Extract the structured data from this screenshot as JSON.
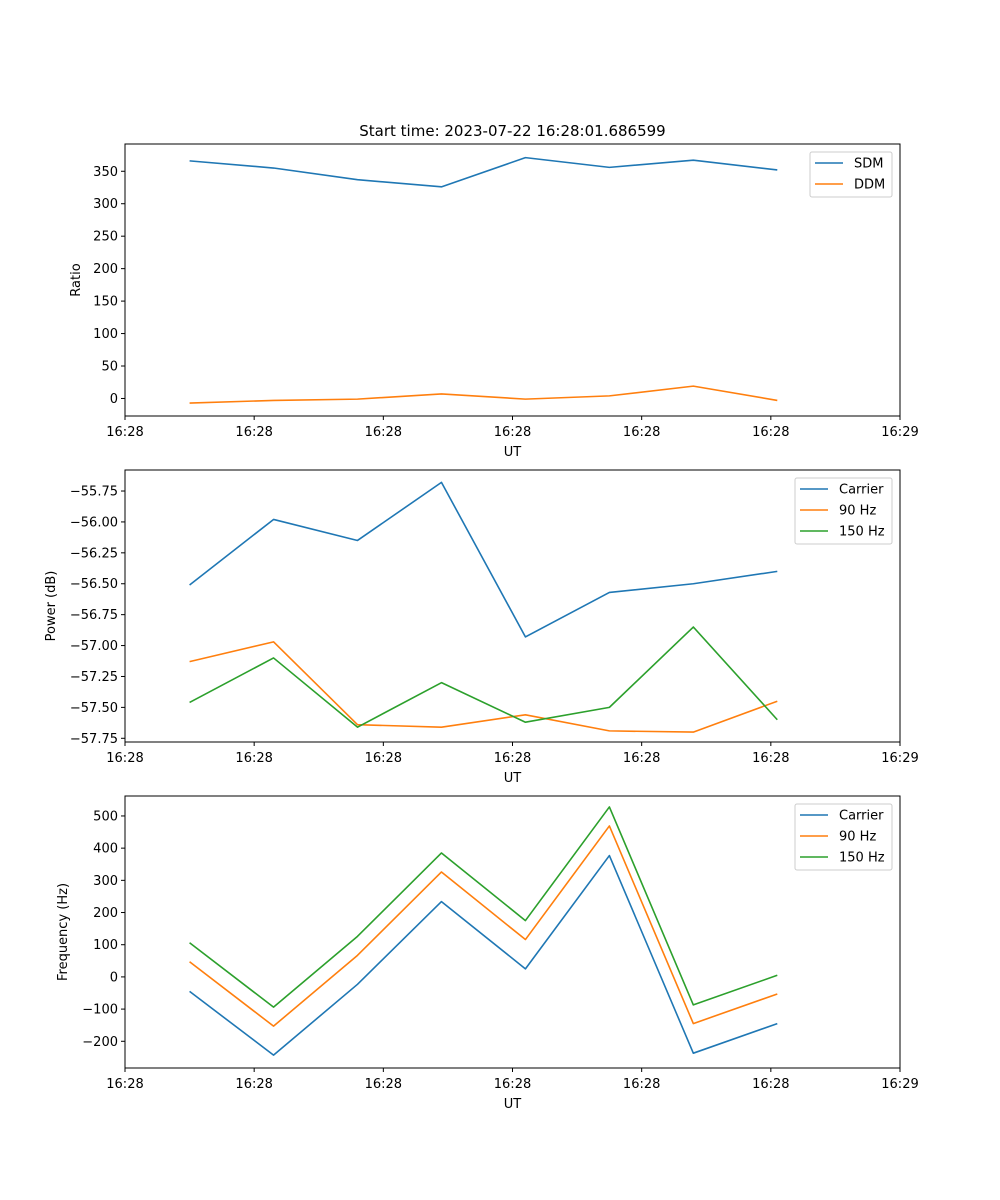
{
  "chart_data": [
    {
      "type": "line",
      "title": "Start time: 2023-07-22 16:28:01.686599",
      "xlabel": "UT",
      "ylabel": "Ratio",
      "xlim": [
        0,
        6
      ],
      "x": [
        0.5,
        1.15,
        1.8,
        2.45,
        3.1,
        3.75,
        4.4,
        5.05
      ],
      "x_ticks": [
        0,
        1,
        2,
        3,
        4,
        5,
        6
      ],
      "x_tick_labels": [
        "16:28",
        "16:28",
        "16:28",
        "16:28",
        "16:28",
        "16:28",
        "16:29"
      ],
      "ylim": [
        -27,
        392
      ],
      "y_ticks": [
        0,
        50,
        100,
        150,
        200,
        250,
        300,
        350
      ],
      "y_tick_labels": [
        "0",
        "50",
        "100",
        "150",
        "200",
        "250",
        "300",
        "350"
      ],
      "legend": "top-right",
      "series": [
        {
          "name": "SDM",
          "color": "#1f77b4",
          "values": [
            366,
            355,
            337,
            326,
            371,
            356,
            367,
            352
          ]
        },
        {
          "name": "DDM",
          "color": "#ff7f0e",
          "values": [
            -7,
            -3,
            -1,
            7,
            -1,
            4,
            19,
            -3
          ]
        }
      ]
    },
    {
      "type": "line",
      "title": "",
      "xlabel": "UT",
      "ylabel": "Power (dB)",
      "xlim": [
        0,
        6
      ],
      "x": [
        0.5,
        1.15,
        1.8,
        2.45,
        3.1,
        3.75,
        4.4,
        5.05
      ],
      "x_ticks": [
        0,
        1,
        2,
        3,
        4,
        5,
        6
      ],
      "x_tick_labels": [
        "16:28",
        "16:28",
        "16:28",
        "16:28",
        "16:28",
        "16:28",
        "16:29"
      ],
      "ylim": [
        -57.78,
        -55.58
      ],
      "y_ticks": [
        -57.75,
        -57.5,
        -57.25,
        -57.0,
        -56.75,
        -56.5,
        -56.25,
        -56.0,
        -55.75
      ],
      "y_tick_labels": [
        "−57.75",
        "−57.50",
        "−57.25",
        "−57.00",
        "−56.75",
        "−56.50",
        "−56.25",
        "−56.00",
        "−55.75"
      ],
      "legend": "top-right",
      "series": [
        {
          "name": "Carrier",
          "color": "#1f77b4",
          "values": [
            -56.51,
            -55.98,
            -56.15,
            -55.68,
            -56.93,
            -56.57,
            -56.5,
            -56.4
          ]
        },
        {
          "name": "90 Hz",
          "color": "#ff7f0e",
          "values": [
            -57.13,
            -56.97,
            -57.64,
            -57.66,
            -57.56,
            -57.69,
            -57.7,
            -57.45
          ]
        },
        {
          "name": "150 Hz",
          "color": "#2ca02c",
          "values": [
            -57.46,
            -57.1,
            -57.66,
            -57.3,
            -57.62,
            -57.5,
            -56.85,
            -57.6
          ]
        }
      ]
    },
    {
      "type": "line",
      "title": "",
      "xlabel": "UT",
      "ylabel": "Frequency (Hz)",
      "xlim": [
        0,
        6
      ],
      "x": [
        0.5,
        1.15,
        1.8,
        2.45,
        3.1,
        3.75,
        4.4,
        5.05
      ],
      "x_ticks": [
        0,
        1,
        2,
        3,
        4,
        5,
        6
      ],
      "x_tick_labels": [
        "16:28",
        "16:28",
        "16:28",
        "16:28",
        "16:28",
        "16:28",
        "16:29"
      ],
      "ylim": [
        -283,
        562
      ],
      "y_ticks": [
        -200,
        -100,
        0,
        100,
        200,
        300,
        400,
        500
      ],
      "y_tick_labels": [
        "−200",
        "−100",
        "0",
        "100",
        "200",
        "300",
        "400",
        "500"
      ],
      "legend": "top-right",
      "series": [
        {
          "name": "Carrier",
          "color": "#1f77b4",
          "values": [
            -45,
            -243,
            -23,
            234,
            25,
            377,
            -237,
            -145
          ]
        },
        {
          "name": "90 Hz",
          "color": "#ff7f0e",
          "values": [
            47,
            -153,
            67,
            326,
            116,
            469,
            -145,
            -53
          ]
        },
        {
          "name": "150 Hz",
          "color": "#2ca02c",
          "values": [
            106,
            -94,
            126,
            385,
            175,
            528,
            -87,
            5
          ]
        }
      ]
    }
  ]
}
